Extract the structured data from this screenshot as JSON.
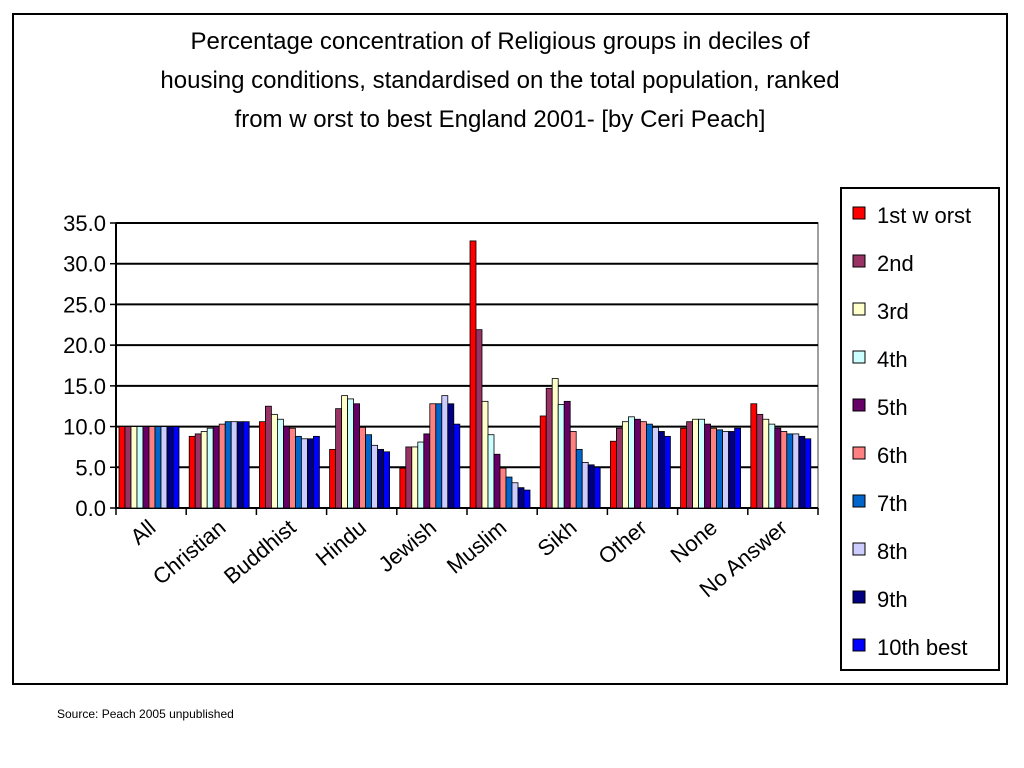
{
  "title": "Percentage concentration of Religious groups in deciles of\nhousing conditions, standardised on the total population, ranked\nfrom w orst to best England 2001- [by Ceri Peach]",
  "source": "Source: Peach 2005 unpublished",
  "chart_data": {
    "type": "bar",
    "title": "Percentage concentration of Religious groups in deciles of housing conditions, standardised on the total population, ranked from w orst to best England 2001- [by Ceri Peach]",
    "xlabel": "",
    "ylabel": "",
    "ylim": [
      0,
      35
    ],
    "yticks": [
      "0.0",
      "5.0",
      "10.0",
      "15.0",
      "20.0",
      "25.0",
      "30.0",
      "35.0"
    ],
    "grid": "horizontal",
    "legend_position": "right",
    "categories": [
      "All",
      "Christian",
      "Buddhist",
      "Hindu",
      "Jewish",
      "Muslim",
      "Sikh",
      "Other",
      "None",
      "No Answer"
    ],
    "series": [
      {
        "name": "1st w orst",
        "color": "#ff0000",
        "values": [
          10.0,
          8.8,
          10.6,
          7.2,
          4.9,
          32.8,
          11.3,
          8.2,
          9.8,
          12.8
        ]
      },
      {
        "name": "2nd",
        "color": "#993366",
        "values": [
          10.0,
          9.1,
          12.5,
          12.2,
          7.5,
          21.9,
          14.7,
          9.8,
          10.6,
          11.5
        ]
      },
      {
        "name": "3rd",
        "color": "#ffffcc",
        "values": [
          10.0,
          9.4,
          11.5,
          13.8,
          7.5,
          13.1,
          15.9,
          10.6,
          10.9,
          10.9
        ]
      },
      {
        "name": "4th",
        "color": "#ccffff",
        "values": [
          10.0,
          9.8,
          10.9,
          13.4,
          8.1,
          9.0,
          12.7,
          11.2,
          10.9,
          10.3
        ]
      },
      {
        "name": "5th",
        "color": "#660066",
        "values": [
          10.0,
          10.0,
          10.0,
          12.8,
          9.1,
          6.6,
          13.1,
          10.9,
          10.3,
          9.8
        ]
      },
      {
        "name": "6th",
        "color": "#ff8080",
        "values": [
          10.0,
          10.3,
          9.8,
          9.9,
          12.8,
          4.9,
          9.4,
          10.6,
          9.8,
          9.4
        ]
      },
      {
        "name": "7th",
        "color": "#0066cc",
        "values": [
          10.0,
          10.6,
          8.8,
          9.0,
          12.8,
          3.8,
          7.2,
          10.3,
          9.6,
          9.1
        ]
      },
      {
        "name": "8th",
        "color": "#ccccff",
        "values": [
          10.0,
          10.6,
          8.5,
          7.7,
          13.8,
          3.1,
          5.6,
          9.9,
          9.4,
          9.1
        ]
      },
      {
        "name": "9th",
        "color": "#000080",
        "values": [
          10.0,
          10.6,
          8.5,
          7.2,
          12.8,
          2.5,
          5.3,
          9.4,
          9.4,
          8.8
        ]
      },
      {
        "name": "10th best",
        "color": "#0000ff",
        "values": [
          10.0,
          10.6,
          8.8,
          6.9,
          10.3,
          2.2,
          5.0,
          8.8,
          9.8,
          8.5
        ]
      }
    ]
  }
}
